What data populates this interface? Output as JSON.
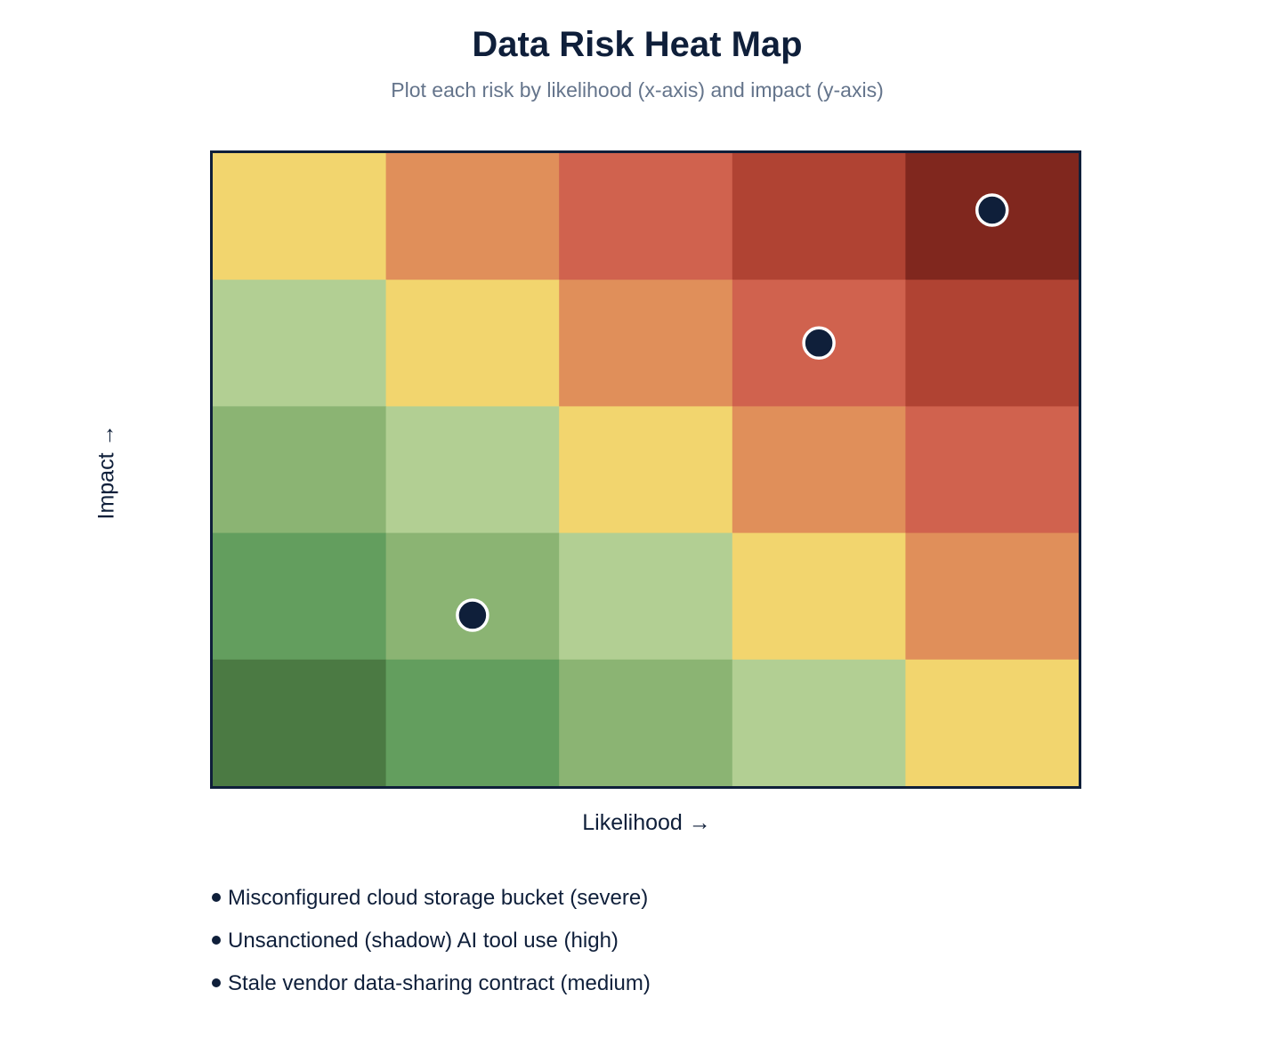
{
  "chart_data": {
    "type": "heatmap",
    "title": "Data Risk Heat Map",
    "subtitle": "Plot each risk by likelihood (x-axis) and impact (y-axis)",
    "xlabel": "Likelihood →",
    "ylabel": "Impact →",
    "grid": {
      "columns": 5,
      "rows": 5
    },
    "cells_top_to_bottom": [
      [
        "#f2d56e",
        "#e08f5a",
        "#d0624e",
        "#b04333",
        "#80271e"
      ],
      [
        "#b2cf93",
        "#f2d56e",
        "#e08f5a",
        "#d0624e",
        "#b04333"
      ],
      [
        "#8bb473",
        "#b2cf93",
        "#f2d56e",
        "#e08f5a",
        "#d0624e"
      ],
      [
        "#639e5e",
        "#8bb473",
        "#b2cf93",
        "#f2d56e",
        "#e08f5a"
      ],
      [
        "#4b7a43",
        "#639e5e",
        "#8bb473",
        "#b2cf93",
        "#f2d56e"
      ]
    ],
    "points": [
      {
        "likelihood": 4.5,
        "impact": 4.55,
        "label": "Misconfigured cloud storage bucket (severe)"
      },
      {
        "likelihood": 3.5,
        "impact": 3.5,
        "label": "Unsanctioned (shadow) AI tool use (high)"
      },
      {
        "likelihood": 1.5,
        "impact": 1.35,
        "label": "Stale vendor data-sharing contract (medium)"
      }
    ],
    "xlim": [
      0,
      5
    ],
    "ylim": [
      0,
      5
    ],
    "marker_color": "#0f1f3a",
    "marker_stroke": "#ffffff",
    "legend_position": "bottom-left"
  }
}
